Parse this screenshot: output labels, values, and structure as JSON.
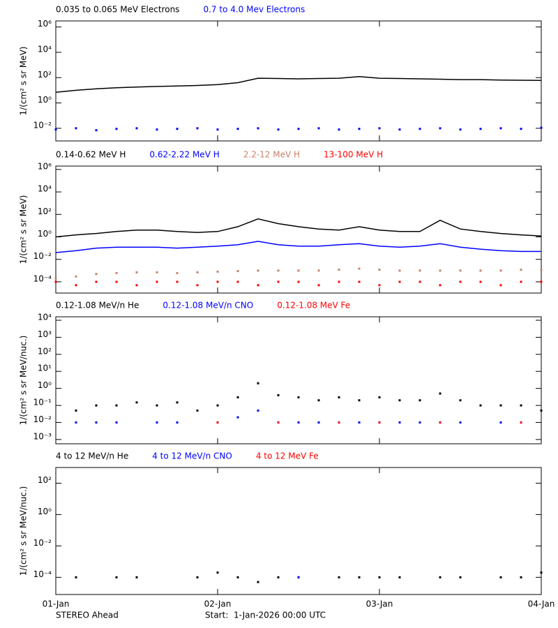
{
  "chart_data": [
    {
      "type": "line",
      "ylabel": "1/(cm² s sr MeV)",
      "log_y": true,
      "ylim": [
        0.001,
        3000000
      ],
      "xlim": [
        0,
        3
      ],
      "yticks": [
        {
          "value": 0.01,
          "label": "10⁻²"
        },
        {
          "value": 1,
          "label": "10⁰"
        },
        {
          "value": 100,
          "label": "10²"
        },
        {
          "value": 10000,
          "label": "10⁴"
        },
        {
          "value": 1000000,
          "label": "10⁶"
        }
      ],
      "x": [
        0,
        0.125,
        0.25,
        0.375,
        0.5,
        0.625,
        0.75,
        0.875,
        1,
        1.125,
        1.25,
        1.375,
        1.5,
        1.625,
        1.75,
        1.875,
        2,
        2.125,
        2.25,
        2.375,
        2.5,
        2.625,
        2.75,
        2.875,
        3
      ],
      "series": [
        {
          "name": "0.035 to 0.065 MeV Electrons",
          "color": "#000000",
          "style": "line",
          "values": [
            7,
            10,
            13,
            16,
            18,
            20,
            22,
            24,
            28,
            40,
            90,
            85,
            80,
            85,
            90,
            120,
            90,
            85,
            80,
            75,
            70,
            70,
            65,
            62,
            60
          ]
        },
        {
          "name": "0.7 to 4.0 Mev Electrons",
          "color": "#0000ff",
          "style": "dots",
          "values": [
            0.008,
            0.01,
            0.007,
            0.009,
            0.01,
            0.008,
            0.009,
            0.01,
            0.008,
            0.009,
            0.01,
            0.008,
            0.009,
            0.01,
            0.008,
            0.009,
            0.01,
            0.008,
            0.009,
            0.01,
            0.008,
            0.009,
            0.01,
            0.009,
            0.011
          ]
        }
      ]
    },
    {
      "type": "line",
      "ylabel": "1/(cm² s sr MeV)",
      "log_y": true,
      "ylim": [
        1e-05,
        2000000
      ],
      "xlim": [
        0,
        3
      ],
      "yticks": [
        {
          "value": 0.0001,
          "label": "10⁻⁴"
        },
        {
          "value": 0.01,
          "label": "10⁻²"
        },
        {
          "value": 1,
          "label": "10⁰"
        },
        {
          "value": 100,
          "label": "10²"
        },
        {
          "value": 10000,
          "label": "10⁴"
        },
        {
          "value": 1000000,
          "label": "10⁶"
        }
      ],
      "x": [
        0,
        0.125,
        0.25,
        0.375,
        0.5,
        0.625,
        0.75,
        0.875,
        1,
        1.125,
        1.25,
        1.375,
        1.5,
        1.625,
        1.75,
        1.875,
        2,
        2.125,
        2.25,
        2.375,
        2.5,
        2.625,
        2.75,
        2.875,
        3
      ],
      "series": [
        {
          "name": "0.14-0.62 MeV H",
          "color": "#000000",
          "style": "line",
          "values": [
            1,
            1.5,
            2,
            3,
            4,
            4,
            3,
            2.5,
            3,
            8,
            40,
            15,
            8,
            5,
            4,
            8,
            4,
            3,
            3,
            30,
            5,
            3,
            2,
            1.5,
            1.2
          ]
        },
        {
          "name": "0.62-2.22 MeV H",
          "color": "#0000ff",
          "style": "line",
          "values": [
            0.04,
            0.06,
            0.1,
            0.12,
            0.12,
            0.12,
            0.1,
            0.12,
            0.15,
            0.2,
            0.4,
            0.2,
            0.15,
            0.15,
            0.2,
            0.25,
            0.15,
            0.12,
            0.15,
            0.25,
            0.12,
            0.08,
            0.06,
            0.05,
            0.05
          ]
        },
        {
          "name": "2.2-12 MeV H",
          "color": "#c8826a",
          "style": "dots",
          "values": [
            0.0002,
            0.0003,
            0.0005,
            0.0006,
            0.0007,
            0.0007,
            0.0006,
            0.0007,
            0.0008,
            0.0009,
            0.001,
            0.001,
            0.001,
            0.001,
            0.0012,
            0.0015,
            0.0012,
            0.001,
            0.001,
            0.001,
            0.001,
            0.001,
            0.001,
            0.0012,
            0.0012
          ]
        },
        {
          "name": "13-100 MeV H",
          "color": "#ff0000",
          "style": "dots",
          "values": [
            0.0001,
            5e-05,
            0.0001,
            0.0001,
            5e-05,
            0.0001,
            0.0001,
            5e-05,
            0.0001,
            0.0001,
            5e-05,
            0.0001,
            0.0001,
            5e-05,
            0.0001,
            0.0001,
            5e-05,
            0.0001,
            0.0001,
            5e-05,
            0.0001,
            0.0001,
            5e-05,
            0.0001,
            0.0001
          ]
        }
      ]
    },
    {
      "type": "line",
      "ylabel": "1/(cm² s sr MeV/nuc.)",
      "log_y": true,
      "ylim": [
        0.00056,
        16000
      ],
      "xlim": [
        0,
        3
      ],
      "yticks": [
        {
          "value": 0.001,
          "label": "10⁻³"
        },
        {
          "value": 0.01,
          "label": "10⁻²"
        },
        {
          "value": 0.1,
          "label": "10⁻¹"
        },
        {
          "value": 1,
          "label": "10⁰"
        },
        {
          "value": 10,
          "label": "10¹"
        },
        {
          "value": 100,
          "label": "10²"
        },
        {
          "value": 1000,
          "label": "10³"
        },
        {
          "value": 10000,
          "label": "10⁴"
        }
      ],
      "x": [
        0,
        0.125,
        0.25,
        0.375,
        0.5,
        0.625,
        0.75,
        0.875,
        1,
        1.125,
        1.25,
        1.375,
        1.5,
        1.625,
        1.75,
        1.875,
        2,
        2.125,
        2.25,
        2.375,
        2.5,
        2.625,
        2.75,
        2.875,
        3
      ],
      "series": [
        {
          "name": "0.12-1.08 MeV/n He",
          "color": "#000000",
          "style": "dots",
          "values": [
            null,
            0.05,
            0.1,
            0.1,
            0.15,
            0.1,
            0.15,
            0.05,
            0.1,
            0.3,
            2,
            0.4,
            0.3,
            0.2,
            0.3,
            0.2,
            0.3,
            0.2,
            0.2,
            0.5,
            0.2,
            0.1,
            0.1,
            0.1,
            0.05
          ]
        },
        {
          "name": "0.12-1.08 MeV/n CNO",
          "color": "#0000ff",
          "style": "dots",
          "values": [
            null,
            0.01,
            0.01,
            0.01,
            null,
            0.01,
            0.01,
            null,
            0.01,
            0.02,
            0.05,
            0.01,
            0.01,
            0.01,
            0.01,
            0.01,
            0.01,
            0.01,
            0.01,
            0.01,
            0.01,
            null,
            0.01,
            0.01,
            null
          ]
        },
        {
          "name": "0.12-1.08 MeV Fe",
          "color": "#ff0000",
          "style": "dots",
          "values": [
            null,
            null,
            null,
            null,
            null,
            null,
            null,
            null,
            0.01,
            null,
            null,
            0.01,
            null,
            null,
            0.01,
            null,
            0.01,
            null,
            null,
            0.01,
            null,
            null,
            null,
            0.01,
            null
          ]
        }
      ]
    },
    {
      "type": "line",
      "ylabel": "1/(cm² s sr MeV/nuc.)",
      "log_y": true,
      "ylim": [
        8e-06,
        1000
      ],
      "xlim": [
        0,
        3
      ],
      "yticks": [
        {
          "value": 0.0001,
          "label": "10⁻⁴"
        },
        {
          "value": 0.01,
          "label": "10⁻²"
        },
        {
          "value": 1,
          "label": "10⁰"
        },
        {
          "value": 100,
          "label": "10²"
        }
      ],
      "xticks": [
        {
          "value": 0,
          "label": "01-Jan"
        },
        {
          "value": 1,
          "label": "02-Jan"
        },
        {
          "value": 2,
          "label": "03-Jan"
        },
        {
          "value": 3,
          "label": "04-Jan"
        }
      ],
      "x": [
        0,
        0.125,
        0.25,
        0.375,
        0.5,
        0.625,
        0.75,
        0.875,
        1,
        1.125,
        1.25,
        1.375,
        1.5,
        1.625,
        1.75,
        1.875,
        2,
        2.125,
        2.25,
        2.375,
        2.5,
        2.625,
        2.75,
        2.875,
        3
      ],
      "series": [
        {
          "name": "4 to 12 MeV/n He",
          "color": "#000000",
          "style": "dots",
          "values": [
            null,
            0.0001,
            null,
            0.0001,
            0.0001,
            null,
            null,
            0.0001,
            0.0002,
            0.0001,
            5e-05,
            0.0001,
            0.0001,
            null,
            0.0001,
            0.0001,
            0.0001,
            0.0001,
            null,
            0.0001,
            0.0001,
            null,
            0.0001,
            0.0001,
            0.0002
          ]
        },
        {
          "name": "4 to 12 MeV/n CNO",
          "color": "#0000ff",
          "style": "dots",
          "values": [
            null,
            null,
            null,
            null,
            null,
            null,
            null,
            null,
            null,
            null,
            null,
            null,
            0.0001,
            null,
            null,
            null,
            null,
            null,
            null,
            null,
            null,
            null,
            null,
            null,
            null
          ]
        },
        {
          "name": "4 to 12 MeV Fe",
          "color": "#ff0000",
          "style": "dots",
          "values": [
            null,
            null,
            null,
            null,
            null,
            null,
            null,
            null,
            null,
            null,
            null,
            null,
            null,
            null,
            null,
            null,
            null,
            null,
            null,
            null,
            null,
            null,
            null,
            null,
            null
          ]
        }
      ]
    }
  ],
  "footer": {
    "spacecraft": "STEREO Ahead",
    "start": "Start:  1-Jan-2026 00:00 UTC"
  }
}
